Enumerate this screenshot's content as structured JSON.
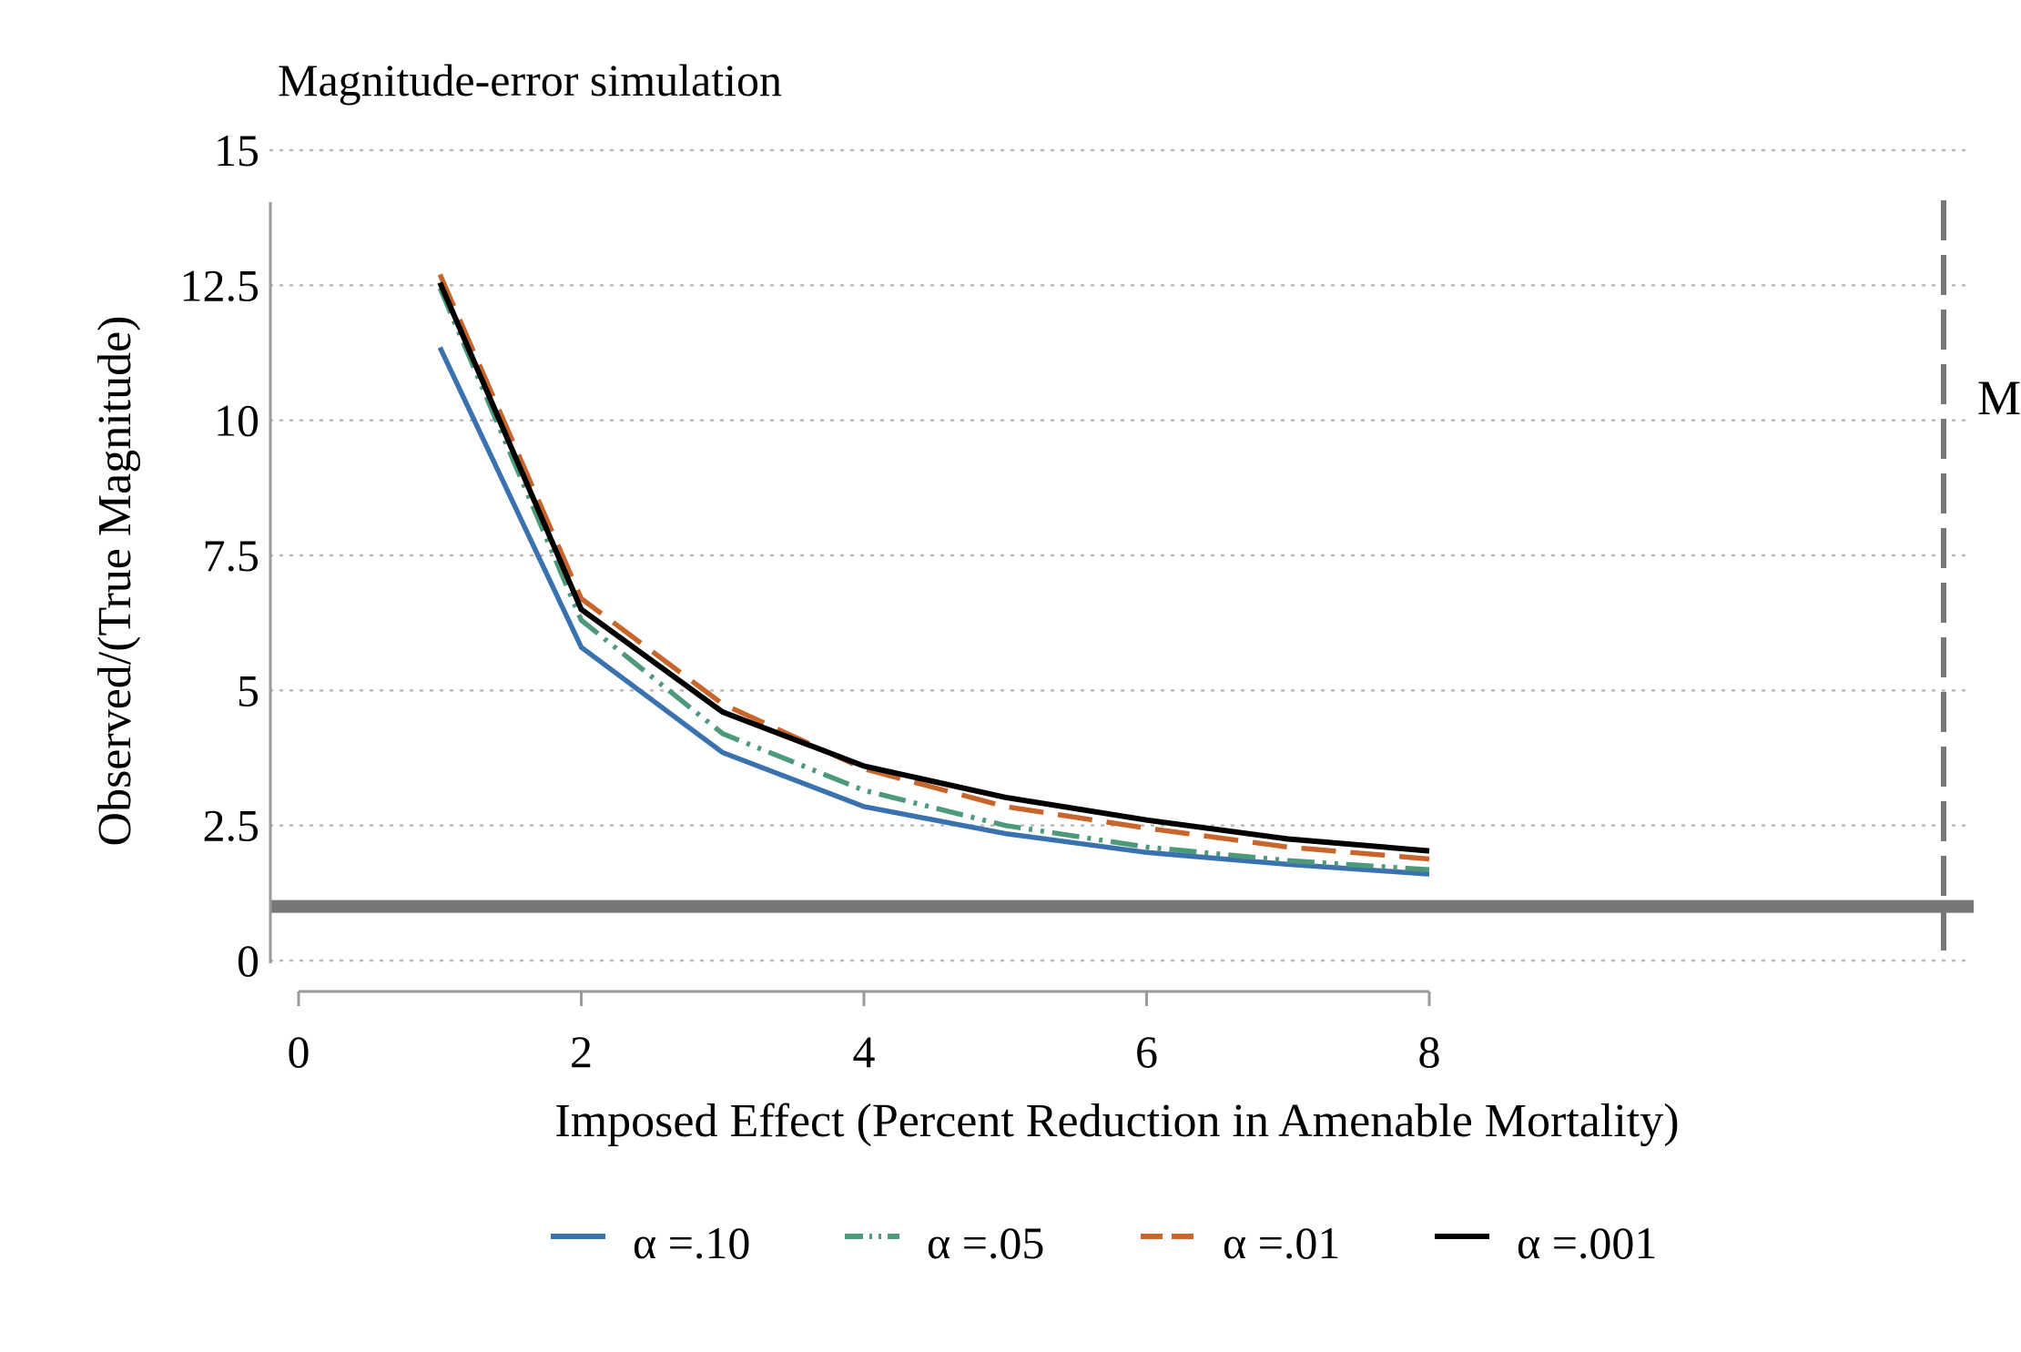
{
  "chart_data": {
    "type": "line",
    "title": "Magnitude-error simulation",
    "xlabel": "Imposed Effect (Percent Reduction in Amenable Mortality)",
    "ylabel": "Observed/(True Magnitude)",
    "xlim": [
      0,
      8
    ],
    "ylim": [
      0,
      15
    ],
    "x_ticks": [
      0,
      2,
      4,
      6,
      8
    ],
    "x_tick_labels": [
      "0",
      "2",
      "4",
      "6",
      "8"
    ],
    "y_ticks": [
      0,
      2.5,
      5,
      7.5,
      10,
      12.5,
      15
    ],
    "y_tick_labels": [
      "0",
      "2.5",
      "5",
      "7.5",
      "10",
      "12.5",
      "15"
    ],
    "grid": "horizontal dotted",
    "legend_position": "bottom",
    "x": [
      1,
      2,
      3,
      4,
      5,
      6,
      7,
      8
    ],
    "series": [
      {
        "name": "α =.10",
        "color": "#3a72b0",
        "dash": "solid",
        "values": [
          11.35,
          5.8,
          3.85,
          2.85,
          2.35,
          2.0,
          1.78,
          1.6
        ]
      },
      {
        "name": "α =.05",
        "color": "#4c9a7a",
        "dash": "dash-dot-dot",
        "values": [
          12.45,
          6.3,
          4.2,
          3.15,
          2.5,
          2.1,
          1.85,
          1.68
        ]
      },
      {
        "name": "α =.01",
        "color": "#c8652a",
        "dash": "dashed",
        "values": [
          12.7,
          6.7,
          4.75,
          3.55,
          2.85,
          2.45,
          2.1,
          1.88
        ]
      },
      {
        "name": "α =.001",
        "color": "#000000",
        "dash": "solid",
        "values": [
          12.55,
          6.5,
          4.6,
          3.6,
          3.02,
          2.6,
          2.25,
          2.03
        ]
      }
    ],
    "reference_lines": [
      {
        "type": "horizontal",
        "y": 1,
        "color": "#777777",
        "style": "solid-thick"
      },
      {
        "type": "vertical",
        "style": "dashed",
        "color": "#777777",
        "label": "M"
      }
    ]
  }
}
